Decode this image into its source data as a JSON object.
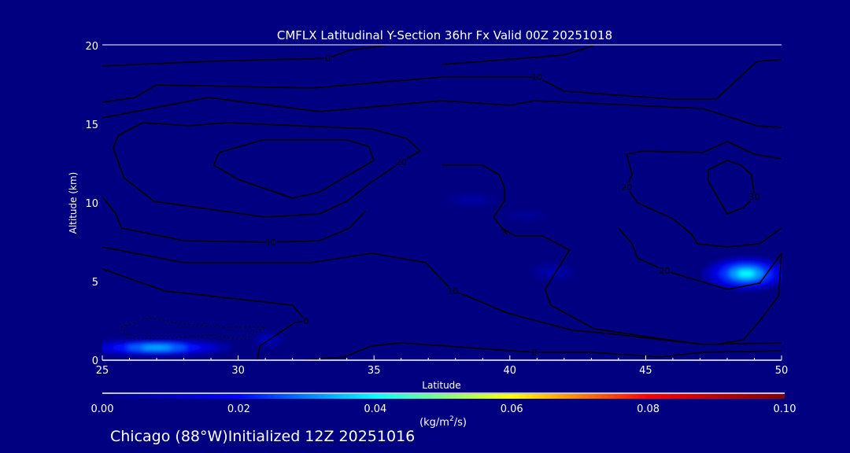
{
  "chart_data": {
    "type": "heatmap",
    "title": "CMFLX Latitudinal Y-Section 36hr  Fx Valid 00Z 20251018",
    "xlabel": "Latitude",
    "ylabel": "Altitude (km)",
    "xlim": [
      25,
      50
    ],
    "ylim": [
      0,
      20
    ],
    "xticks": [
      "25",
      "30",
      "35",
      "40",
      "45",
      "50"
    ],
    "yticks": [
      "0",
      "5",
      "10",
      "15",
      "20"
    ],
    "colorbar": {
      "range": [
        0.0,
        0.1
      ],
      "ticks": [
        "0.00",
        "0.02",
        "0.04",
        "0.06",
        "0.08",
        "0.10"
      ],
      "units_prefix": "(kg/m",
      "units_sup": "2",
      "units_suffix": "/s)",
      "colors": [
        "#000080",
        "#0000ff",
        "#00ffff",
        "#ffff00",
        "#ff0000",
        "#800000"
      ]
    },
    "filled_maxima": [
      {
        "lat": 27.0,
        "alt": 0.8,
        "value": 0.035,
        "lat_spread": 2.8,
        "alt_spread": 0.55
      },
      {
        "lat": 31.1,
        "alt": 1.3,
        "value": 0.012,
        "lat_spread": 0.6,
        "alt_spread": 0.5
      },
      {
        "lat": 48.7,
        "alt": 5.5,
        "value": 0.04,
        "lat_spread": 1.6,
        "alt_spread": 1.1
      },
      {
        "lat": 38.6,
        "alt": 10.2,
        "value": 0.006,
        "lat_spread": 1.0,
        "alt_spread": 0.5
      },
      {
        "lat": 40.6,
        "alt": 9.2,
        "value": 0.004,
        "lat_spread": 0.9,
        "alt_spread": 0.45
      },
      {
        "lat": 41.6,
        "alt": 5.6,
        "value": 0.008,
        "lat_spread": 0.9,
        "alt_spread": 0.6
      }
    ],
    "contours": [
      {
        "label": "0",
        "dashed": false,
        "points": [
          [
            25,
            18.7
          ],
          [
            28.9,
            19.0
          ],
          [
            33.3,
            19.2
          ],
          [
            34.1,
            19.7
          ],
          [
            35.4,
            20.0
          ]
        ]
      },
      {
        "label": "",
        "dashed": false,
        "points": [
          [
            37.5,
            18.8
          ],
          [
            42.0,
            19.4
          ],
          [
            43.1,
            20.0
          ]
        ]
      },
      {
        "label": "10",
        "dashed": false,
        "points": [
          [
            25,
            16.4
          ],
          [
            26.2,
            16.7
          ],
          [
            27.0,
            17.5
          ],
          [
            32.7,
            17.3
          ],
          [
            37.5,
            18.0
          ],
          [
            39.0,
            18.0
          ],
          [
            41.0,
            18.0
          ],
          [
            42.0,
            17.1
          ],
          [
            46.0,
            16.6
          ],
          [
            47.6,
            16.6
          ],
          [
            48.6,
            18.2
          ],
          [
            49.1,
            19.0
          ],
          [
            50,
            19.1
          ]
        ]
      },
      {
        "label": "",
        "dashed": false,
        "points": [
          [
            25,
            15.4
          ],
          [
            28.9,
            16.7
          ],
          [
            33.0,
            15.8
          ],
          [
            37.5,
            16.5
          ],
          [
            40.0,
            16.2
          ],
          [
            40.9,
            16.5
          ],
          [
            47.1,
            16.0
          ],
          [
            49.1,
            14.9
          ],
          [
            50,
            14.8
          ]
        ]
      },
      {
        "label": "20",
        "dashed": false,
        "points": [
          [
            25.4,
            13.5
          ],
          [
            25.6,
            14.3
          ],
          [
            26.5,
            15.1
          ],
          [
            28.2,
            14.9
          ],
          [
            29.6,
            15.1
          ],
          [
            34.9,
            14.7
          ],
          [
            36.2,
            14.1
          ],
          [
            36.7,
            13.3
          ],
          [
            36.0,
            12.6
          ],
          [
            34.9,
            11.3
          ],
          [
            34.0,
            10.1
          ],
          [
            33.0,
            9.3
          ],
          [
            31.0,
            9.1
          ],
          [
            26.9,
            10.1
          ],
          [
            25.8,
            11.6
          ],
          [
            25.4,
            13.5
          ]
        ]
      },
      {
        "label": "",
        "dashed": false,
        "points": [
          [
            29.3,
            13.2
          ],
          [
            30.9,
            14.0
          ],
          [
            34.0,
            14.0
          ],
          [
            34.8,
            13.6
          ],
          [
            35.0,
            12.7
          ],
          [
            33.0,
            10.7
          ],
          [
            32.0,
            10.3
          ],
          [
            30.0,
            11.5
          ],
          [
            29.1,
            12.4
          ],
          [
            29.3,
            13.2
          ]
        ]
      },
      {
        "label": "30",
        "dashed": false,
        "points": [
          [
            47.3,
            12.1
          ],
          [
            48.0,
            12.7
          ],
          [
            48.5,
            12.4
          ],
          [
            48.9,
            11.8
          ],
          [
            49.0,
            10.4
          ],
          [
            48.6,
            9.7
          ],
          [
            48.0,
            9.3
          ],
          [
            47.3,
            11.4
          ],
          [
            47.3,
            12.1
          ]
        ]
      },
      {
        "label": "20",
        "dashed": false,
        "points": [
          [
            50,
            12.8
          ],
          [
            49.0,
            13.1
          ],
          [
            48.0,
            13.9
          ],
          [
            47.1,
            13.2
          ],
          [
            44.9,
            13.3
          ],
          [
            44.3,
            13.1
          ],
          [
            44.5,
            11.8
          ],
          [
            44.3,
            11.0
          ],
          [
            44.7,
            10.0
          ],
          [
            46.0,
            9.0
          ],
          [
            46.7,
            8.0
          ],
          [
            46.9,
            7.4
          ],
          [
            48.0,
            7.2
          ],
          [
            49.2,
            7.4
          ],
          [
            50,
            8.4
          ]
        ]
      },
      {
        "label": "20",
        "dashed": false,
        "points": [
          [
            44.0,
            8.4
          ],
          [
            44.5,
            7.4
          ],
          [
            44.7,
            6.5
          ],
          [
            45.7,
            5.7
          ],
          [
            48.0,
            4.5
          ],
          [
            49.2,
            4.9
          ],
          [
            50,
            6.8
          ]
        ]
      },
      {
        "label": "10",
        "dashed": false,
        "points": [
          [
            25,
            10.4
          ],
          [
            25.5,
            9.3
          ],
          [
            25.7,
            8.4
          ],
          [
            28.0,
            7.6
          ],
          [
            31.2,
            7.5
          ],
          [
            33.0,
            7.6
          ],
          [
            34.1,
            8.4
          ],
          [
            34.7,
            9.5
          ]
        ]
      },
      {
        "label": "10",
        "dashed": false,
        "points": [
          [
            25,
            7.2
          ],
          [
            28.0,
            6.2
          ],
          [
            30.0,
            6.2
          ],
          [
            32.7,
            6.2
          ],
          [
            34.9,
            6.8
          ],
          [
            36.9,
            6.2
          ],
          [
            37.9,
            4.4
          ],
          [
            38.4,
            4.1
          ],
          [
            39.9,
            3.0
          ],
          [
            42.3,
            1.9
          ],
          [
            43.6,
            1.7
          ],
          [
            47.1,
            1.0
          ],
          [
            50,
            1.1
          ]
        ]
      },
      {
        "label": "",
        "dashed": false,
        "points": [
          [
            37.5,
            12.4
          ],
          [
            39.0,
            12.4
          ],
          [
            39.6,
            11.8
          ],
          [
            39.8,
            11.0
          ],
          [
            39.8,
            10.1
          ],
          [
            39.4,
            9.1
          ],
          [
            39.9,
            8.0
          ],
          [
            39.7,
            8.4
          ],
          [
            40.2,
            7.9
          ],
          [
            41.2,
            7.9
          ],
          [
            42.2,
            7.0
          ],
          [
            41.3,
            4.5
          ],
          [
            41.5,
            3.5
          ],
          [
            43.1,
            2.0
          ],
          [
            45.4,
            1.4
          ],
          [
            47.1,
            1.0
          ]
        ]
      },
      {
        "label": "",
        "dashed": false,
        "points": [
          [
            50,
            6.8
          ],
          [
            49.9,
            4.1
          ],
          [
            49.2,
            2.5
          ],
          [
            48.6,
            1.3
          ],
          [
            47.6,
            1.0
          ]
        ]
      },
      {
        "label": "0",
        "dashed": false,
        "points": [
          [
            25,
            5.8
          ],
          [
            27.3,
            4.4
          ],
          [
            32.0,
            3.5
          ],
          [
            32.5,
            2.5
          ],
          [
            32.1,
            2.4
          ],
          [
            30.8,
            0.9
          ],
          [
            30.7,
            0.0
          ]
        ]
      },
      {
        "label": "0",
        "dashed": false,
        "points": [
          [
            32.3,
            0.0
          ],
          [
            33.9,
            0.2
          ],
          [
            34.9,
            0.9
          ],
          [
            36.0,
            1.1
          ],
          [
            40.9,
            0.5
          ],
          [
            43.0,
            0.5
          ],
          [
            45.5,
            0.2
          ],
          [
            47.1,
            0.5
          ],
          [
            50,
            0.6
          ]
        ]
      },
      {
        "label": "",
        "dashed": true,
        "points": [
          [
            25.7,
            2.1
          ],
          [
            26.7,
            2.7
          ],
          [
            28.0,
            2.3
          ],
          [
            29.5,
            2.1
          ],
          [
            31.0,
            2.1
          ],
          [
            30.2,
            1.3
          ],
          [
            29.0,
            1.6
          ],
          [
            27.5,
            1.4
          ],
          [
            26.0,
            1.4
          ],
          [
            25.7,
            2.1
          ]
        ]
      }
    ]
  },
  "footer": {
    "location": "Chicago (88°W)Initialized 12Z 20251016"
  }
}
